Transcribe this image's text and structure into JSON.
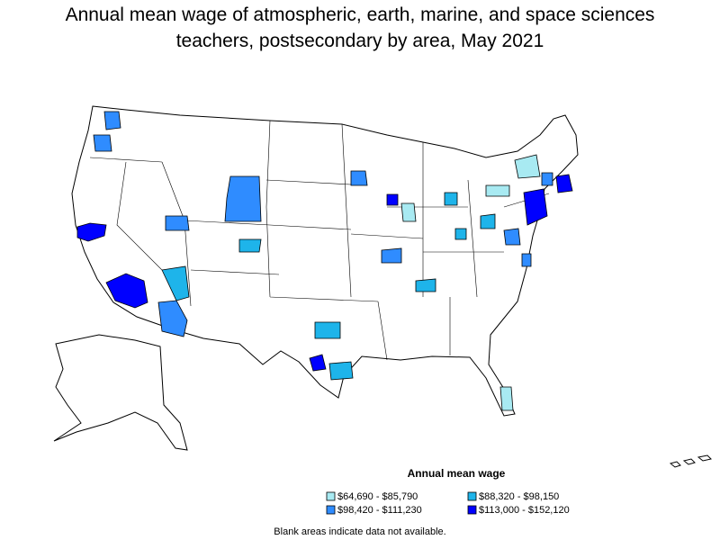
{
  "header": {
    "title": "Annual mean wage of atmospheric, earth, marine, and space sciences teachers, postsecondary by area, May 2021"
  },
  "legend": {
    "title": "Annual mean wage",
    "items": [
      {
        "label": "$64,690 - $85,790",
        "color": "#a8eaf2"
      },
      {
        "label": "$88,320 - $98,150",
        "color": "#1eb4ea"
      },
      {
        "label": "$98,420 - $111,230",
        "color": "#2f8cff"
      },
      {
        "label": "$113,000 - $152,120",
        "color": "#0000ff"
      }
    ]
  },
  "footnote": "Blank areas indicate data not available."
}
